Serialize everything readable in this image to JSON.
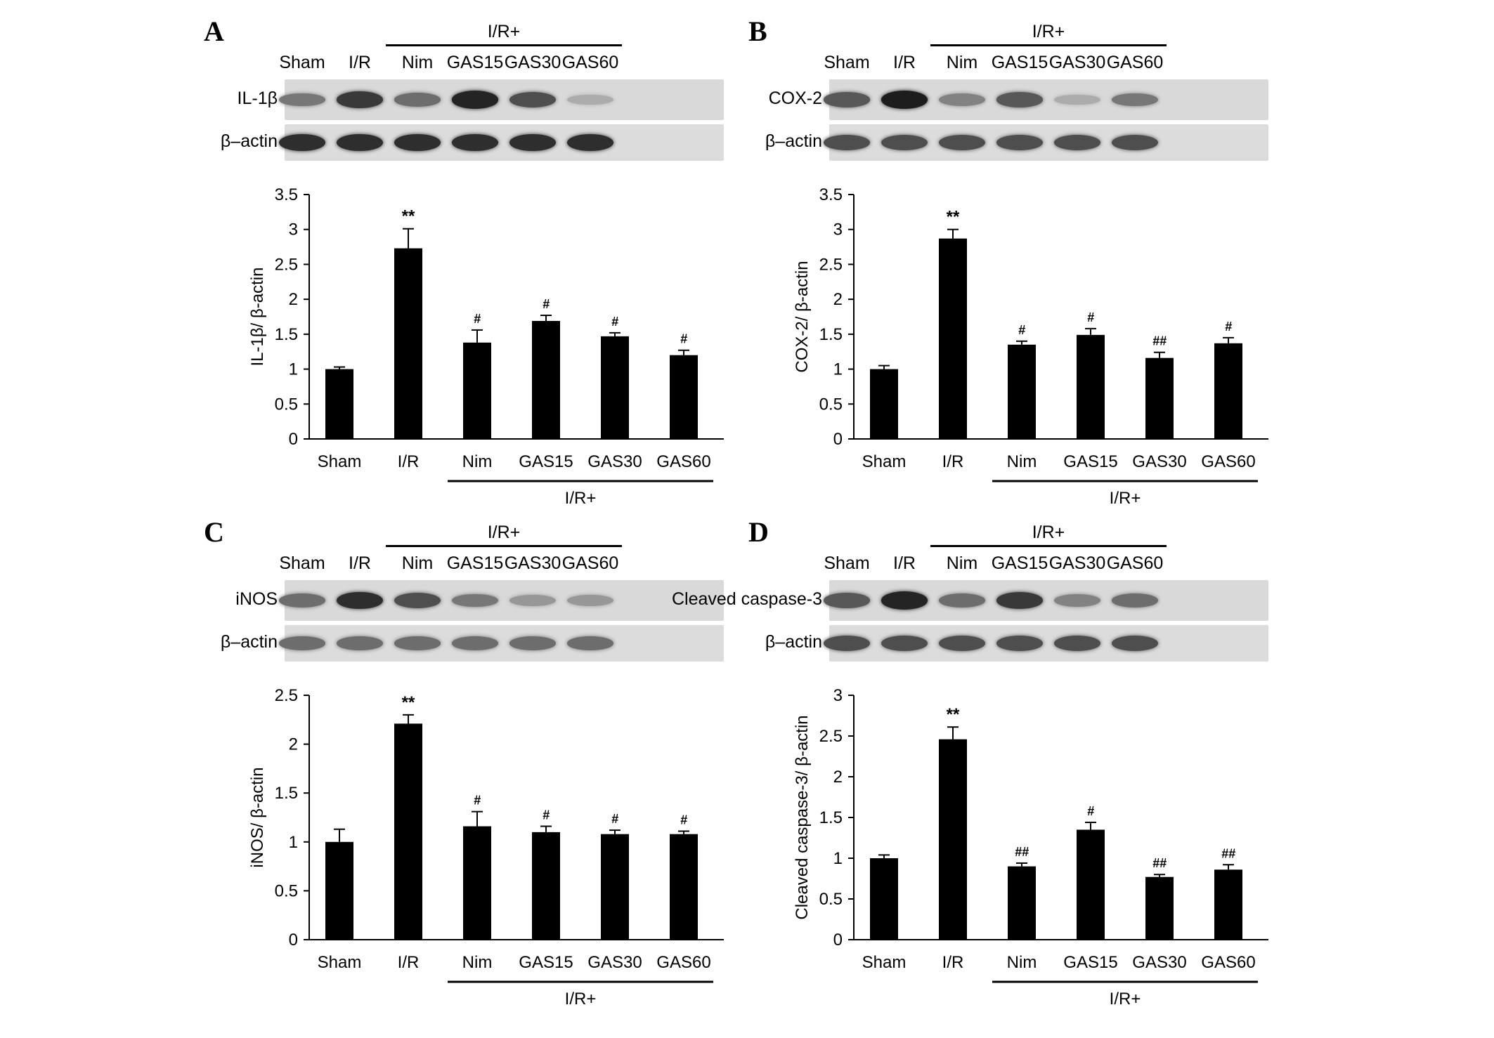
{
  "chart_data": [
    {
      "panel": "A",
      "type": "bar",
      "categories": [
        "Sham",
        "I/R",
        "Nim",
        "GAS15",
        "GAS30",
        "GAS60"
      ],
      "values": [
        1.0,
        2.73,
        1.38,
        1.69,
        1.47,
        1.2
      ],
      "errors": [
        0.03,
        0.28,
        0.18,
        0.08,
        0.05,
        0.07
      ],
      "annotations": [
        "",
        "**",
        "#",
        "#",
        "#",
        "#"
      ],
      "ylabel": "IL-1β/ β-actin",
      "ylim": [
        0,
        3.5
      ],
      "yticks": [
        0,
        0.5,
        1,
        1.5,
        2,
        2.5,
        3,
        3.5
      ],
      "xlabel": "",
      "group_label": "I/R+",
      "title": "",
      "grid": false,
      "color": "#000000",
      "blot": {
        "lanes": [
          "Sham",
          "I/R",
          "Nim",
          "GAS15",
          "GAS30",
          "GAS60"
        ],
        "group_label": "I/R+",
        "bands": [
          {
            "label": "IL-1β",
            "intensity": [
              0.55,
              0.85,
              0.6,
              0.95,
              0.75,
              0.3
            ]
          },
          {
            "label": "β–actin",
            "intensity": [
              0.9,
              0.9,
              0.9,
              0.9,
              0.9,
              0.9
            ]
          }
        ]
      }
    },
    {
      "panel": "B",
      "type": "bar",
      "categories": [
        "Sham",
        "I/R",
        "Nim",
        "GAS15",
        "GAS30",
        "GAS60"
      ],
      "values": [
        1.0,
        2.87,
        1.35,
        1.49,
        1.16,
        1.37
      ],
      "errors": [
        0.05,
        0.13,
        0.05,
        0.09,
        0.08,
        0.08
      ],
      "annotations": [
        "",
        "**",
        "#",
        "#",
        "##",
        "#"
      ],
      "ylabel": "COX-2/ β-actin",
      "ylim": [
        0,
        3.5
      ],
      "yticks": [
        0,
        0.5,
        1,
        1.5,
        2,
        2.5,
        3,
        3.5
      ],
      "xlabel": "",
      "group_label": "I/R+",
      "title": "",
      "grid": false,
      "color": "#000000",
      "blot": {
        "lanes": [
          "Sham",
          "I/R",
          "Nim",
          "GAS15",
          "GAS30",
          "GAS60"
        ],
        "group_label": "I/R+",
        "bands": [
          {
            "label": "COX-2",
            "intensity": [
              0.7,
              0.98,
              0.5,
              0.7,
              0.3,
              0.55
            ]
          },
          {
            "label": "β–actin",
            "intensity": [
              0.75,
              0.75,
              0.75,
              0.75,
              0.75,
              0.75
            ]
          }
        ]
      }
    },
    {
      "panel": "C",
      "type": "bar",
      "categories": [
        "Sham",
        "I/R",
        "Nim",
        "GAS15",
        "GAS30",
        "GAS60"
      ],
      "values": [
        1.0,
        2.21,
        1.16,
        1.1,
        1.08,
        1.08
      ],
      "errors": [
        0.13,
        0.09,
        0.15,
        0.06,
        0.04,
        0.03
      ],
      "annotations": [
        "",
        "**",
        "#",
        "#",
        "#",
        "#"
      ],
      "ylabel": "iNOS/ β-actin",
      "ylim": [
        0,
        2.5
      ],
      "yticks": [
        0,
        0.5,
        1,
        1.5,
        2,
        2.5
      ],
      "xlabel": "",
      "group_label": "I/R+",
      "title": "",
      "grid": false,
      "color": "#000000",
      "blot": {
        "lanes": [
          "Sham",
          "I/R",
          "Nim",
          "GAS15",
          "GAS30",
          "GAS60"
        ],
        "group_label": "I/R+",
        "bands": [
          {
            "label": "iNOS",
            "intensity": [
              0.6,
              0.9,
              0.75,
              0.55,
              0.4,
              0.4
            ]
          },
          {
            "label": "β–actin",
            "intensity": [
              0.6,
              0.6,
              0.6,
              0.6,
              0.6,
              0.6
            ]
          }
        ]
      }
    },
    {
      "panel": "D",
      "type": "bar",
      "categories": [
        "Sham",
        "I/R",
        "Nim",
        "GAS15",
        "GAS30",
        "GAS60"
      ],
      "values": [
        1.0,
        2.46,
        0.9,
        1.35,
        0.77,
        0.86
      ],
      "errors": [
        0.04,
        0.15,
        0.04,
        0.09,
        0.03,
        0.06
      ],
      "annotations": [
        "",
        "**",
        "##",
        "#",
        "##",
        "##"
      ],
      "ylabel": "Cleaved caspase-3/ β-actin",
      "ylim": [
        0,
        3
      ],
      "yticks": [
        0,
        0.5,
        1,
        1.5,
        2,
        2.5,
        3
      ],
      "xlabel": "",
      "group_label": "I/R+",
      "title": "",
      "grid": false,
      "color": "#000000",
      "blot": {
        "lanes": [
          "Sham",
          "I/R",
          "Nim",
          "GAS15",
          "GAS30",
          "GAS60"
        ],
        "group_label": "I/R+",
        "bands": [
          {
            "label": "Cleaved caspase-3",
            "intensity": [
              0.7,
              0.95,
              0.6,
              0.85,
              0.5,
              0.6
            ]
          },
          {
            "label": "β–actin",
            "intensity": [
              0.75,
              0.75,
              0.75,
              0.75,
              0.75,
              0.75
            ]
          }
        ]
      }
    }
  ]
}
